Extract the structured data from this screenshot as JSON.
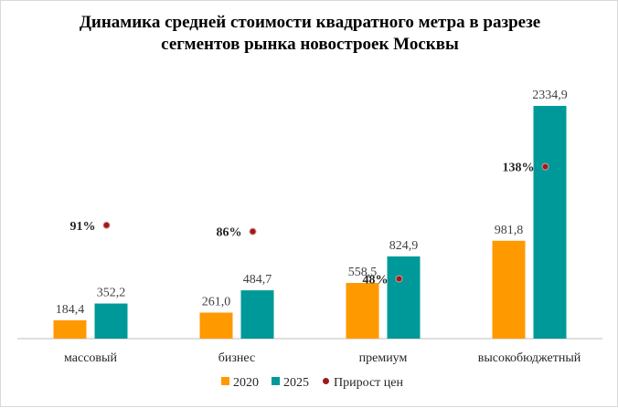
{
  "chart_data": {
    "type": "bar",
    "title": "Динамика средней стоимости квадратного метра в разрезе сегментов рынка новостроек Москвы",
    "title_lines": [
      "Динамика средней стоимости квадратного метра в разрезе",
      "сегментов рынка новостроек Москвы"
    ],
    "categories": [
      "массовый",
      "бизнес",
      "премиум",
      "высокобюджетный"
    ],
    "series": [
      {
        "name": "2020",
        "values": [
          184.4,
          261.0,
          558.5,
          981.8
        ],
        "labels": [
          "184,4",
          "261,0",
          "558,5",
          "981,8"
        ],
        "color": "#FF9900"
      },
      {
        "name": "2025",
        "values": [
          352.2,
          484.7,
          824.9,
          2334.9
        ],
        "labels": [
          "352,2",
          "484,7",
          "824,9",
          "2334,9"
        ],
        "color": "#009999"
      }
    ],
    "growth": {
      "name": "Прирост цен",
      "values": [
        91,
        86,
        48,
        138
      ],
      "labels": [
        "91%",
        "86%",
        "48%",
        "138%"
      ],
      "color": "#9B1B1B"
    },
    "ylim": [
      0,
      2500
    ],
    "growth_ylim": [
      0,
      200
    ],
    "legend": "bottom"
  }
}
